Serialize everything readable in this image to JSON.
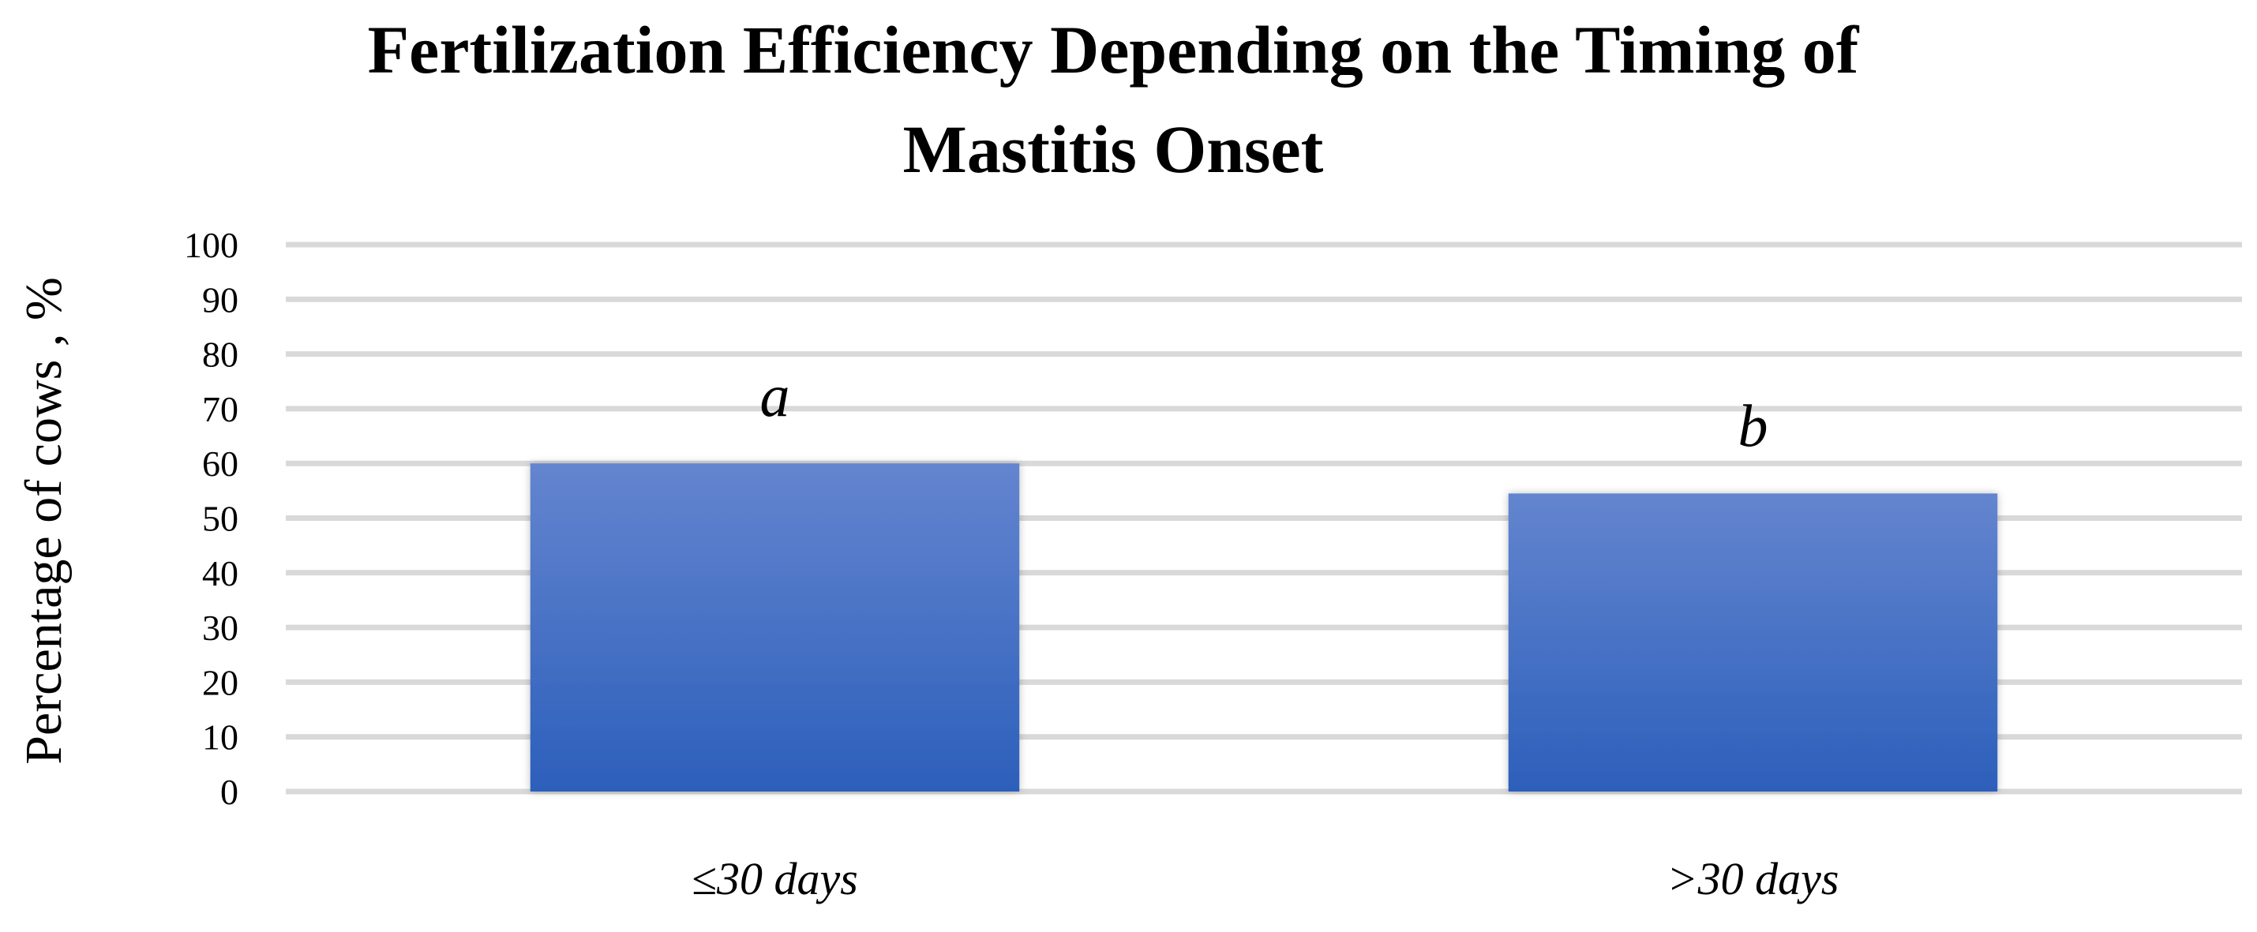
{
  "chart_data": {
    "type": "bar",
    "title_lines": [
      "Fertilization Efficiency Depending on the Timing of",
      "Mastitis Onset"
    ],
    "xlabel": "",
    "ylabel": "Percentage of cows , %",
    "categories": [
      "≤30 days",
      ">30 days"
    ],
    "values": [
      60,
      54.5
    ],
    "annotations": [
      "a",
      "b"
    ],
    "ylim": [
      0,
      100
    ],
    "yticks": [
      0,
      10,
      20,
      30,
      40,
      50,
      60,
      70,
      80,
      90,
      100
    ],
    "grid": true,
    "legend": "none",
    "colors": {
      "bar_top": "#6485cf",
      "bar_bottom": "#2c5fbb",
      "grid": "#d9d9d9",
      "text": "#000000"
    }
  }
}
